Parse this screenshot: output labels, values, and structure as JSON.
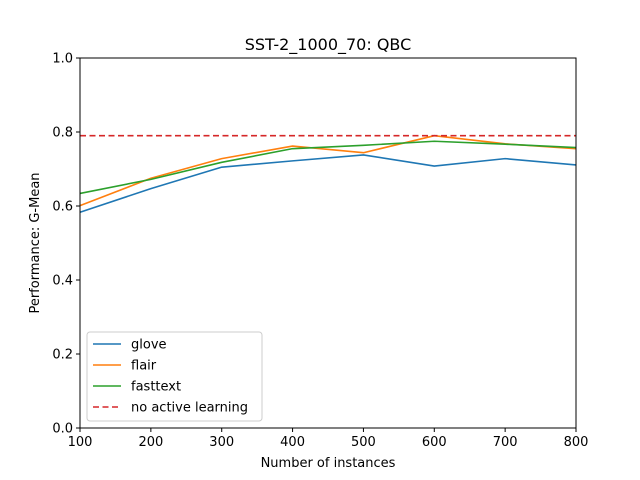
{
  "chart_data": {
    "type": "line",
    "title": "SST-2_1000_70: QBC",
    "xlabel": "Number of instances",
    "ylabel": "Performance: G-Mean",
    "xlim": [
      100,
      800
    ],
    "ylim": [
      0.0,
      1.0
    ],
    "xticks": [
      100,
      200,
      300,
      400,
      500,
      600,
      700,
      800
    ],
    "yticks": [
      0.0,
      0.2,
      0.4,
      0.6,
      0.8,
      1.0
    ],
    "xtick_labels": [
      "100",
      "200",
      "300",
      "400",
      "500",
      "600",
      "700",
      "800"
    ],
    "ytick_labels": [
      "0.0",
      "0.2",
      "0.4",
      "0.6",
      "0.8",
      "1.0"
    ],
    "grid": false,
    "legend_position": "lower-left",
    "x": [
      100,
      200,
      300,
      400,
      500,
      600,
      700,
      800
    ],
    "series": [
      {
        "name": "glove",
        "color": "#1f77b4",
        "style": "solid",
        "values": [
          0.583,
          0.647,
          0.705,
          0.722,
          0.738,
          0.708,
          0.728,
          0.711
        ]
      },
      {
        "name": "flair",
        "color": "#ff7f0e",
        "style": "solid",
        "values": [
          0.601,
          0.675,
          0.728,
          0.762,
          0.744,
          0.79,
          0.768,
          0.755
        ]
      },
      {
        "name": "fasttext",
        "color": "#2ca02c",
        "style": "solid",
        "values": [
          0.634,
          0.672,
          0.718,
          0.755,
          0.764,
          0.775,
          0.767,
          0.758
        ]
      },
      {
        "name": "no active learning",
        "color": "#d62728",
        "style": "dashed",
        "values": [
          0.79,
          0.79,
          0.79,
          0.79,
          0.79,
          0.79,
          0.79,
          0.79
        ]
      }
    ]
  }
}
